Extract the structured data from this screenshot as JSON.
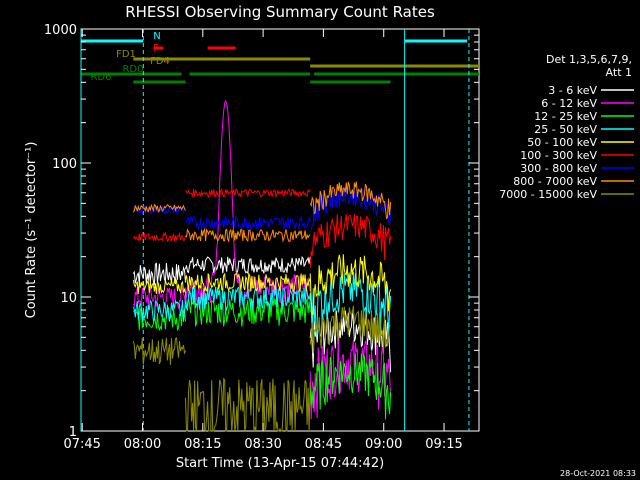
{
  "chart_data": {
    "type": "line",
    "title": "RHESSI Observing Summary Count Rates",
    "xlabel": "Start Time (13-Apr-15 07:44:42)",
    "ylabel": "Count Rate (s⁻¹ detector⁻¹)",
    "y_scale": "log",
    "ylim": [
      1,
      1000
    ],
    "xlim_minutes": [
      0,
      99
    ],
    "x_ticks": [
      "07:45",
      "08:00",
      "08:15",
      "08:30",
      "08:45",
      "09:00",
      "09:15"
    ],
    "y_ticks": [
      "1",
      "10",
      "100",
      "1000"
    ],
    "legend_title": [
      "Det 1,3,5,6,7,9,",
      "Att 1"
    ],
    "legend_placement": "right",
    "timestamp": "28-Oct-2021 08:33",
    "series": [
      {
        "label": "3 - 6 keV",
        "color": "#ffffff",
        "values": [
          {
            "start": 13,
            "end": 26,
            "base": 15,
            "amp": 3
          },
          {
            "start": 26,
            "end": 57,
            "base": 17.5,
            "amp": 2.5
          },
          {
            "start": 57,
            "end": 77,
            "base": 5.5,
            "amp": 2
          }
        ]
      },
      {
        "label": "6 - 12 keV",
        "color": "#ff00ff",
        "values": [
          {
            "start": 13,
            "end": 26,
            "base": 10,
            "amp": 2
          },
          {
            "start": 26,
            "end": 57,
            "base": 12,
            "amp": 3,
            "peak": 290
          },
          {
            "start": 57,
            "end": 77,
            "base": 3,
            "amp": 1.5
          }
        ]
      },
      {
        "label": "12 - 25 keV",
        "color": "#00ff00",
        "values": [
          {
            "start": 13,
            "end": 26,
            "base": 7,
            "amp": 1.5
          },
          {
            "start": 26,
            "end": 57,
            "base": 8,
            "amp": 2
          },
          {
            "start": 57,
            "end": 77,
            "base": 2.5,
            "amp": 1
          }
        ]
      },
      {
        "label": "25 - 50 keV",
        "color": "#00ffff",
        "values": [
          {
            "start": 13,
            "end": 26,
            "base": 8,
            "amp": 1.5
          },
          {
            "start": 26,
            "end": 57,
            "base": 10,
            "amp": 2
          },
          {
            "start": 57,
            "end": 77,
            "base": 10,
            "amp": 4
          }
        ]
      },
      {
        "label": "50 - 100 keV",
        "color": "#ffff00",
        "values": [
          {
            "start": 13,
            "end": 26,
            "base": 12,
            "amp": 1.5
          },
          {
            "start": 26,
            "end": 57,
            "base": 13,
            "amp": 2
          },
          {
            "start": 57,
            "end": 77,
            "base": 14,
            "amp": 5
          }
        ]
      },
      {
        "label": "100 - 300 keV",
        "color": "#ff0000",
        "values": [
          {
            "start": 13,
            "end": 26,
            "base": 28,
            "amp": 2
          },
          {
            "start": 26,
            "end": 57,
            "base": 60,
            "amp": 4
          },
          {
            "start": 57,
            "end": 77,
            "base": 30,
            "amp": 8
          }
        ]
      },
      {
        "label": "300 - 800 keV",
        "color": "#0000ff",
        "values": [
          {
            "start": 13,
            "end": 26,
            "base": 45,
            "amp": 3
          },
          {
            "start": 26,
            "end": 57,
            "base": 36,
            "amp": 4
          },
          {
            "start": 57,
            "end": 77,
            "base": 50,
            "amp": 10
          }
        ]
      },
      {
        "label": "800 - 7000 keV",
        "color": "#ff8c00",
        "values": [
          {
            "start": 13,
            "end": 26,
            "base": 46,
            "amp": 3
          },
          {
            "start": 26,
            "end": 57,
            "base": 29,
            "amp": 3
          },
          {
            "start": 57,
            "end": 77,
            "base": 55,
            "amp": 10
          }
        ]
      },
      {
        "label": "7000 - 15000 keV",
        "color": "#8b8b00",
        "values": [
          {
            "start": 13,
            "end": 26,
            "base": 4,
            "amp": 1
          },
          {
            "start": 26,
            "end": 57,
            "base": 1.5,
            "amp": 1
          },
          {
            "start": 57,
            "end": 77,
            "base": 6,
            "amp": 2
          }
        ]
      }
    ],
    "flags": [
      {
        "label": "N",
        "color": "#00ffff",
        "segments": [
          [
            0,
            15.5
          ],
          [
            80.5,
            96
          ]
        ]
      },
      {
        "label": "F",
        "color": "#ff0000",
        "segments": [
          [
            18,
            20.5
          ],
          [
            31.5,
            38.5
          ]
        ]
      },
      {
        "label": "FD1",
        "color": "#8b8b00",
        "segments": [
          [
            13,
            57
          ]
        ]
      },
      {
        "label": "FD4",
        "color": "#8b8b00",
        "segments": [
          [
            57,
            99
          ]
        ]
      },
      {
        "label": "RD0",
        "color": "#008000",
        "segments": [
          [
            0,
            25
          ],
          [
            27,
            57
          ],
          [
            58,
            99
          ]
        ]
      },
      {
        "label": "RD6",
        "color": "#008000",
        "segments": [
          [
            13,
            26
          ],
          [
            57,
            77
          ]
        ]
      }
    ],
    "vlines": [
      {
        "x": 0,
        "color": "#00ffff",
        "style": "solid"
      },
      {
        "x": 15.5,
        "color": "#00ffff",
        "style": "dashed"
      },
      {
        "x": 80.5,
        "color": "#00ffff",
        "style": "solid"
      },
      {
        "x": 96.5,
        "color": "#00ffff",
        "style": "dashed"
      }
    ]
  }
}
